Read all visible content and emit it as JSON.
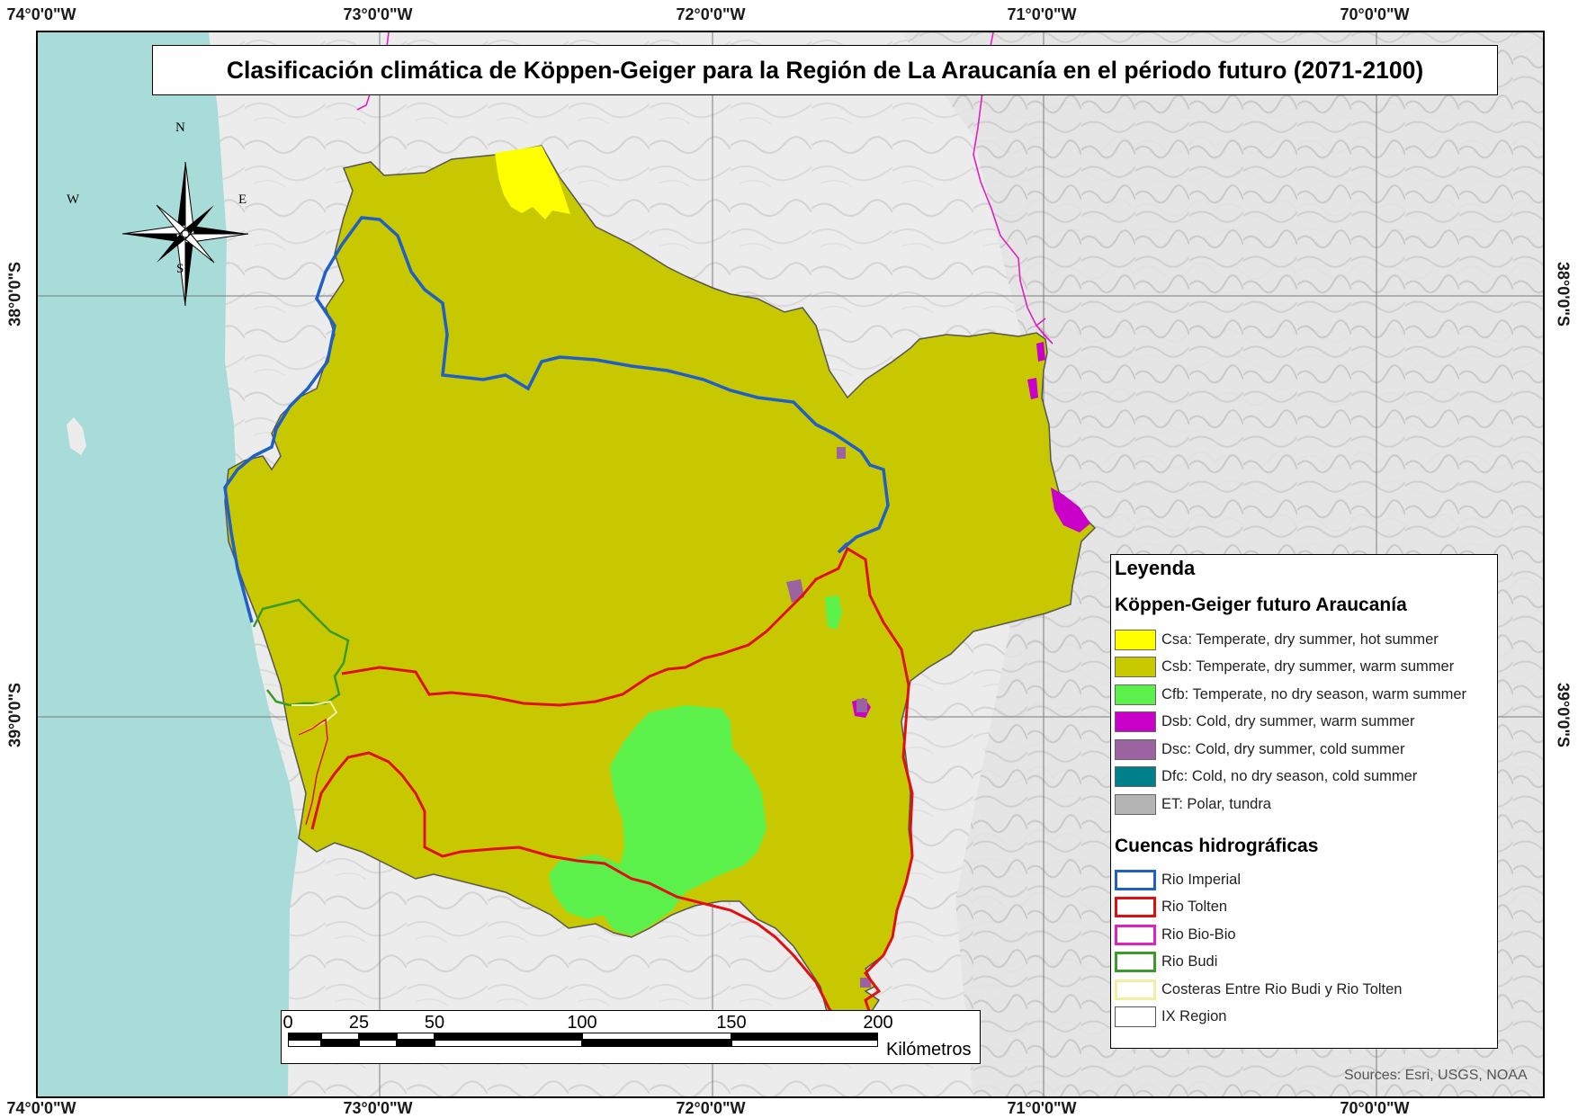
{
  "title": "Clasificación climática de Köppen-Geiger para la Región de La Araucanía en el périodo futuro (2071-2100)",
  "graticule": {
    "top": [
      "74°0'0\"W",
      "73°0'0\"W",
      "72°0'0\"W",
      "71°0'0\"W",
      "70°0'0\"W"
    ],
    "bottom": [
      "74°0'0\"W",
      "73°0'0\"W",
      "72°0'0\"W",
      "71°0'0\"W",
      "70°0'0\"W"
    ],
    "left": [
      "38°0'0\"S",
      "39°0'0\"S"
    ],
    "right": [
      "38°0'0\"S",
      "39°0'0\"S"
    ]
  },
  "compass": {
    "n": "N",
    "s": "S",
    "e": "E",
    "w": "W"
  },
  "colors": {
    "ocean": "#a8dcd8",
    "land": "#ececec",
    "csa": "#ffff00",
    "csb": "#c8c800",
    "cfb": "#5cf04a",
    "dsb": "#c800c8",
    "dsc": "#9b64a0",
    "dfc": "#00808a",
    "et": "#b4b4b4",
    "imperial": "#1f5fc8",
    "tolten": "#e01010",
    "biobio": "#e020c0",
    "budi": "#3a9a2a",
    "costeras": "#f0f0a0",
    "region": "#555555"
  },
  "legend": {
    "title": "Leyenda",
    "climate_heading": "Köppen-Geiger futuro Araucanía",
    "climate_items": [
      {
        "code": "csa",
        "label": "Csa: Temperate, dry summer, hot summer"
      },
      {
        "code": "csb",
        "label": "Csb: Temperate, dry summer, warm summer"
      },
      {
        "code": "cfb",
        "label": "Cfb: Temperate, no dry season, warm summer"
      },
      {
        "code": "dsb",
        "label": "Dsb: Cold, dry summer, warm summer"
      },
      {
        "code": "dsc",
        "label": "Dsc: Cold, dry summer, cold summer"
      },
      {
        "code": "dfc",
        "label": "Dfc: Cold, no dry season, cold summer"
      },
      {
        "code": "et",
        "label": "ET: Polar, tundra"
      }
    ],
    "basins_heading": "Cuencas hidrográficas",
    "basin_items": [
      {
        "code": "imperial",
        "label": "Rio Imperial"
      },
      {
        "code": "tolten",
        "label": "Rio Tolten"
      },
      {
        "code": "biobio",
        "label": "Rio Bio-Bio"
      },
      {
        "code": "budi",
        "label": "Rio Budi"
      },
      {
        "code": "costeras",
        "label": "Costeras Entre Rio Budi y Rio Tolten"
      },
      {
        "code": "region",
        "label": "IX Region"
      }
    ]
  },
  "scalebar": {
    "ticks": [
      "0",
      "25",
      "50",
      "100",
      "150",
      "200"
    ],
    "unit": "Kilómetros"
  },
  "sources": "Sources: Esri, USGS, NOAA"
}
